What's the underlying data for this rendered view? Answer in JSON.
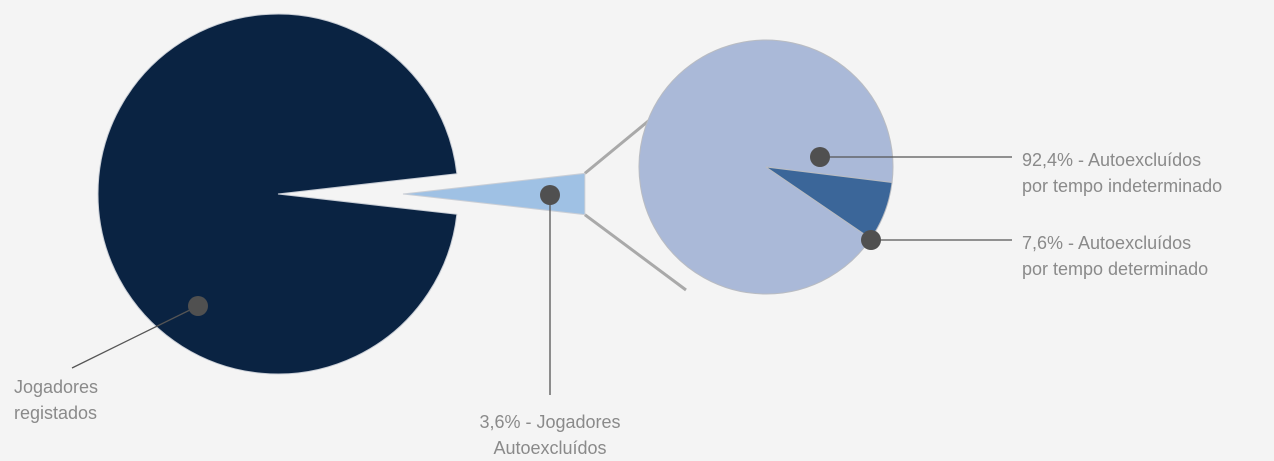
{
  "chart_data": {
    "type": "pie",
    "title": "",
    "main_pie": {
      "slices": [
        {
          "label_lines": [
            "Jogadores",
            "registados"
          ],
          "value": 96.4,
          "color": "#0a2342"
        },
        {
          "label_lines": [
            "3,6% - Jogadores",
            "Autoexcluídos"
          ],
          "value": 3.6,
          "color": "#9fc1e4"
        }
      ]
    },
    "sub_pie": {
      "breakdown_of": "3,6% - Jogadores Autoexcluídos",
      "slices": [
        {
          "label_lines": [
            "92,4% - Autoexcluídos",
            "por tempo indeterminado"
          ],
          "value": 92.4,
          "color": "#aab9d8"
        },
        {
          "label_lines": [
            "7,6% - Autoexcluídos",
            "por tempo determinado"
          ],
          "value": 7.6,
          "color": "#3b6699"
        }
      ]
    },
    "colors": {
      "background": "#f4f4f4",
      "connector": "#a9a9a9",
      "leader_line": "#555555",
      "marker_dot": "#505050",
      "label_text": "#8a8a8a"
    },
    "legend": "none"
  }
}
